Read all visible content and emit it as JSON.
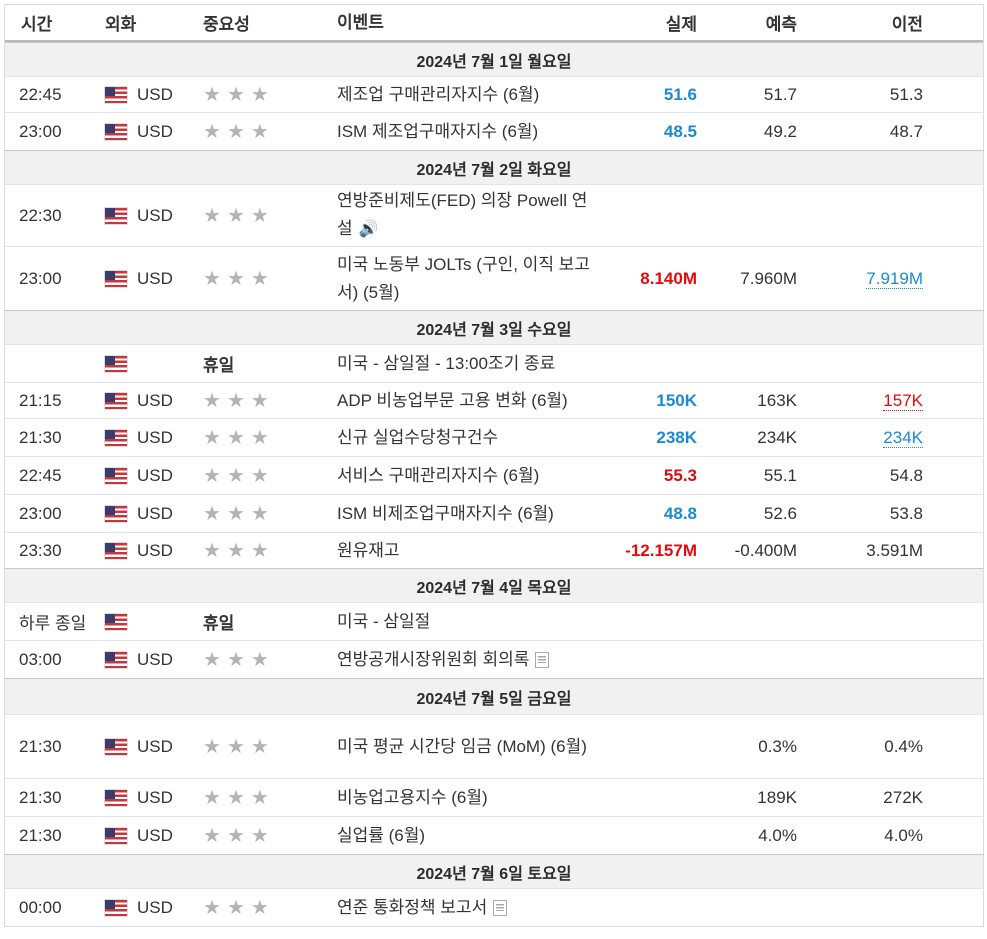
{
  "headers": {
    "time": "시간",
    "currency": "외화",
    "importance": "중요성",
    "event": "이벤트",
    "actual": "실제",
    "forecast": "예측",
    "previous": "이전"
  },
  "days": [
    {
      "label": "2024년 7월 1일 월요일",
      "events": [
        {
          "time": "22:45",
          "currency": "USD",
          "stars": 3,
          "name": "제조업 구매관리자지수 (6월)",
          "actual": "51.6",
          "actual_color": "blue",
          "forecast": "51.7",
          "previous": "51.3",
          "previous_style": ""
        },
        {
          "time": "23:00",
          "currency": "USD",
          "stars": 3,
          "name": "ISM 제조업구매자지수 (6월)",
          "actual": "48.5",
          "actual_color": "blue",
          "forecast": "49.2",
          "previous": "48.7",
          "previous_style": ""
        }
      ]
    },
    {
      "label": "2024년 7월 2일 화요일",
      "events": [
        {
          "time": "22:30",
          "currency": "USD",
          "stars": 3,
          "name": "연방준비제도(FED) 의장 Powell 연설",
          "icon": "speaker-icon",
          "actual": "",
          "forecast": "",
          "previous": ""
        },
        {
          "time": "23:00",
          "currency": "USD",
          "stars": 3,
          "name": "미국 노동부 JOLTs (구인, 이직 보고서) (5월)",
          "actual": "8.140M",
          "actual_color": "red",
          "forecast": "7.960M",
          "previous": "7.919M",
          "previous_style": "dotted-blue"
        }
      ]
    },
    {
      "label": "2024년 7월 3일 수요일",
      "events": [
        {
          "time": "",
          "currency": "",
          "holiday": "휴일",
          "name": "미국 - 삼일절 - 13:00조기 종료",
          "actual": "",
          "forecast": "",
          "previous": ""
        },
        {
          "time": "21:15",
          "currency": "USD",
          "stars": 3,
          "name": "ADP 비농업부문 고용 변화 (6월)",
          "actual": "150K",
          "actual_color": "blue",
          "forecast": "163K",
          "previous": "157K",
          "previous_style": "dotted-red"
        },
        {
          "time": "21:30",
          "currency": "USD",
          "stars": 3,
          "name": "신규 실업수당청구건수",
          "actual": "238K",
          "actual_color": "blue",
          "forecast": "234K",
          "previous": "234K",
          "previous_style": "dotted-blue"
        },
        {
          "time": "22:45",
          "currency": "USD",
          "stars": 3,
          "name": "서비스 구매관리자지수 (6월)",
          "actual": "55.3",
          "actual_color": "red",
          "forecast": "55.1",
          "previous": "54.8",
          "previous_style": ""
        },
        {
          "time": "23:00",
          "currency": "USD",
          "stars": 3,
          "name": "ISM 비제조업구매자지수 (6월)",
          "actual": "48.8",
          "actual_color": "blue",
          "forecast": "52.6",
          "previous": "53.8",
          "previous_style": ""
        },
        {
          "time": "23:30",
          "currency": "USD",
          "stars": 3,
          "name": "원유재고",
          "actual": "-12.157M",
          "actual_color": "red",
          "forecast": "-0.400M",
          "previous": "3.591M",
          "previous_style": ""
        }
      ]
    },
    {
      "label": "2024년 7월 4일 목요일",
      "events": [
        {
          "time": "하루 종일",
          "currency": "",
          "holiday": "휴일",
          "name": "미국 - 삼일절",
          "actual": "",
          "forecast": "",
          "previous": ""
        },
        {
          "time": "03:00",
          "currency": "USD",
          "stars": 3,
          "name": "연방공개시장위원회 회의록",
          "icon": "document-icon",
          "actual": "",
          "forecast": "",
          "previous": ""
        }
      ]
    },
    {
      "label": "2024년 7월 5일 금요일",
      "events": [
        {
          "time": "21:30",
          "currency": "USD",
          "stars": 3,
          "name": "미국 평균 시간당 임금 (MoM) (6월)",
          "actual": "",
          "forecast": "0.3%",
          "previous": "0.4%",
          "previous_style": ""
        },
        {
          "time": "21:30",
          "currency": "USD",
          "stars": 3,
          "name": "비농업고용지수 (6월)",
          "actual": "",
          "forecast": "189K",
          "previous": "272K",
          "previous_style": ""
        },
        {
          "time": "21:30",
          "currency": "USD",
          "stars": 3,
          "name": "실업률 (6월)",
          "actual": "",
          "forecast": "4.0%",
          "previous": "4.0%",
          "previous_style": ""
        }
      ]
    },
    {
      "label": "2024년 7월 6일 토요일",
      "events": [
        {
          "time": "00:00",
          "currency": "USD",
          "stars": 3,
          "name": "연준 통화정책 보고서",
          "icon": "document-icon",
          "actual": "",
          "forecast": "",
          "previous": ""
        }
      ]
    }
  ]
}
